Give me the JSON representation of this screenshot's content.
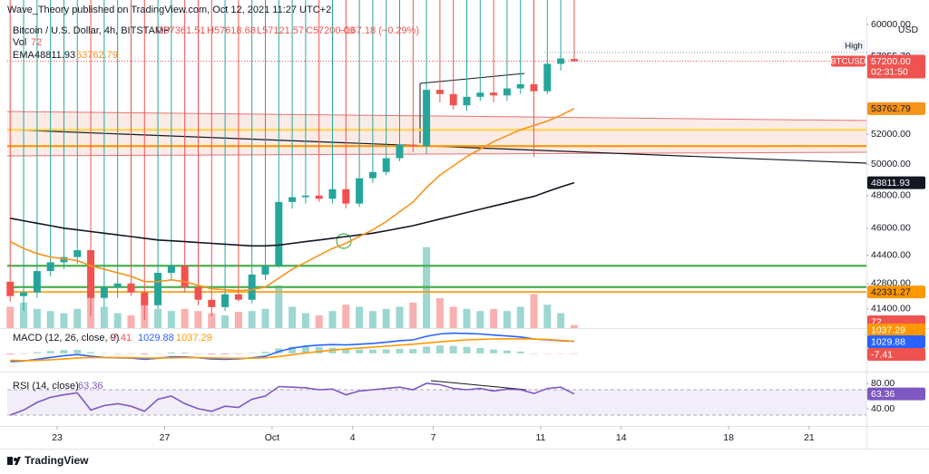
{
  "header": {
    "publisher": "Wave_Theory published on TradingView.com, Oct 12, 2021 11:27 UTC+2",
    "logo": "TradingView"
  },
  "chart_data": [
    {
      "type": "candlestick",
      "title": "Bitcoin / U.S. Dollar, 4h, BITSTAMP",
      "ohlc_labels": [
        "O57361.51",
        "H57618.68",
        "L57121.57",
        "C57200.00"
      ],
      "change": "−167.18 (−0.29%)",
      "x": [
        21.25,
        21.75,
        22.25,
        22.75,
        23.25,
        23.75,
        24.25,
        24.75,
        25.25,
        25.75,
        26.25,
        26.75,
        27.25,
        27.75,
        28.25,
        28.75,
        29.25,
        29.75,
        30.25,
        30.75,
        31.25,
        31.75,
        32.25,
        32.75,
        33.25,
        33.75,
        34.25,
        34.75,
        35.25,
        35.75,
        36.25,
        36.75,
        37.25,
        37.75,
        38.25,
        38.75,
        39.25,
        39.75,
        40.25,
        40.75,
        41.25,
        41.75,
        42.25
      ],
      "open": [
        42900,
        42100,
        42300,
        43500,
        44000,
        44300,
        44700,
        42000,
        42600,
        42800,
        42300,
        41600,
        43400,
        43800,
        42600,
        41900,
        41500,
        42200,
        41900,
        43300,
        43800,
        47600,
        47900,
        48000,
        47800,
        48400,
        47500,
        49100,
        49500,
        50400,
        51300,
        51200,
        55100,
        54800,
        54000,
        54600,
        54900,
        54700,
        55200,
        55500,
        55000,
        57000,
        57361.51
      ],
      "high": 57855.79,
      "low": [
        41800,
        41300,
        42000,
        43200,
        43600,
        43900,
        41000,
        41500,
        42000,
        42100,
        40800,
        41400,
        43000,
        42300,
        41600,
        41000,
        41300,
        41800,
        41700,
        43000,
        43700,
        47200,
        47500,
        47600,
        47500,
        47200,
        47300,
        48800,
        49300,
        50200,
        50800,
        50700,
        54200,
        53700,
        53600,
        54300,
        54200,
        54300,
        54800,
        50500,
        54800,
        56500,
        57121.57
      ],
      "close": [
        42100,
        42300,
        43500,
        44000,
        44300,
        44700,
        42000,
        42600,
        42800,
        42300,
        41600,
        43400,
        43800,
        42600,
        41900,
        41500,
        42200,
        41900,
        43300,
        43800,
        47600,
        47900,
        48000,
        47800,
        48400,
        47500,
        49100,
        49500,
        50400,
        51300,
        51200,
        55100,
        54800,
        54000,
        54600,
        54900,
        54700,
        55200,
        55500,
        55000,
        57000,
        57400,
        57200.0
      ],
      "up_color": "#26a69a",
      "down_color": "#ef5350",
      "indicator_label": "EMA",
      "series": [
        {
          "color": "#131722",
          "values": [
            46600,
            46450,
            46300,
            46150,
            46000,
            45900,
            45800,
            45700,
            45600,
            45500,
            45400,
            45300,
            45250,
            45200,
            45150,
            45100,
            45050,
            45000,
            44950,
            44950,
            45000,
            45100,
            45200,
            45300,
            45400,
            45500,
            45600,
            45700,
            45850,
            46000,
            46150,
            46350,
            46550,
            46750,
            46950,
            47150,
            47350,
            47550,
            47750,
            47950,
            48250,
            48550,
            48811.93
          ]
        },
        {
          "color": "#f7931a",
          "values": [
            45200,
            44800,
            44500,
            44300,
            44200,
            44100,
            43800,
            43600,
            43400,
            43200,
            42900,
            42900,
            43000,
            42900,
            42700,
            42500,
            42450,
            42400,
            42450,
            42600,
            43100,
            43600,
            44000,
            44400,
            44800,
            45100,
            45500,
            45900,
            46400,
            47000,
            47600,
            48500,
            49300,
            49900,
            50500,
            51000,
            51500,
            51900,
            52300,
            52600,
            52900,
            53300,
            53762.79
          ]
        }
      ],
      "last_label": "57200.00",
      "symbol_tag": "BTCUSD",
      "countdown": "02:31:50",
      "high_tag": "High",
      "currency": "USD",
      "levels": [
        {
          "value": 43800,
          "color": "#4caf50"
        },
        {
          "value": 42600,
          "color": "#4caf50"
        },
        {
          "value": 52300,
          "color": "#ffd54f"
        },
        {
          "value": 51200,
          "color": "#ff9800"
        }
      ],
      "level": 42331.27,
      "level_color": "#ff9800",
      "log": true,
      "grid": false,
      "ylim": [
        40380,
        60360
      ],
      "yticks": [
        {
          "value": 60000,
          "label": "60000.00"
        },
        {
          "value": 52000,
          "label": "52000.00"
        },
        {
          "value": 50000,
          "label": "50000.00"
        },
        {
          "value": 48000,
          "label": "48000.00"
        },
        {
          "value": 46000,
          "label": "46000.00"
        },
        {
          "value": 44400,
          "label": "44400.00"
        },
        {
          "value": 42800,
          "label": "42800.00"
        },
        {
          "value": 41400,
          "label": "41400.00"
        }
      ],
      "xlim": [
        21.14,
        53.13
      ],
      "xticks": [
        23,
        27,
        {
          "value": 31,
          "label": "Oct"
        },
        {
          "value": 34,
          "label": "4"
        },
        {
          "value": 37,
          "label": "7"
        },
        {
          "value": 41,
          "label": "11"
        },
        {
          "value": 44,
          "label": "14"
        },
        {
          "value": 48,
          "label": "18"
        },
        {
          "value": 51,
          "label": "21"
        }
      ]
    },
    {
      "type": "bar",
      "title": "Vol",
      "values": [
        500,
        600,
        450,
        400,
        350,
        450,
        900,
        500,
        350,
        300,
        550,
        450,
        400,
        450,
        400,
        350,
        300,
        380,
        400,
        450,
        1000,
        500,
        350,
        300,
        400,
        550,
        500,
        400,
        450,
        500,
        600,
        1900,
        700,
        500,
        450,
        400,
        450,
        400,
        500,
        800,
        550,
        350,
        72
      ],
      "up_color": "#26a69a",
      "down_color": "#ef5350",
      "ylim": [
        0,
        2000
      ]
    },
    {
      "type": "line",
      "title": "MACD (12, 26, close, 9)",
      "histogram": [
        -100,
        -30,
        100,
        200,
        280,
        300,
        110,
        10,
        -15,
        -30,
        -105,
        -20,
        80,
        65,
        -10,
        -90,
        -90,
        -50,
        30,
        130,
        420,
        570,
        590,
        540,
        470,
        350,
        330,
        320,
        340,
        380,
        370,
        580,
        670,
        640,
        550,
        450,
        330,
        240,
        160,
        0,
        -30,
        -20,
        -7.41
      ],
      "histogram_colors": [
        "#26a69a",
        "#ef5350"
      ],
      "series": [
        {
          "color": "#2962ff",
          "values": [
            -700,
            -650,
            -500,
            -350,
            -200,
            -100,
            -250,
            -350,
            -380,
            -400,
            -500,
            -420,
            -300,
            -300,
            -380,
            -480,
            -500,
            -470,
            -380,
            -250,
            150,
            450,
            620,
            700,
            750,
            720,
            780,
            850,
            950,
            1080,
            1150,
            1450,
            1650,
            1720,
            1700,
            1650,
            1560,
            1480,
            1400,
            1220,
            1150,
            1080,
            1029.88
          ]
        },
        {
          "color": "#ff9800",
          "values": [
            -600,
            -620,
            -600,
            -550,
            -480,
            -400,
            -360,
            -360,
            -365,
            -370,
            -395,
            -400,
            -380,
            -365,
            -370,
            -390,
            -410,
            -420,
            -410,
            -380,
            -270,
            -120,
            30,
            160,
            280,
            370,
            450,
            530,
            610,
            700,
            780,
            870,
            980,
            1080,
            1150,
            1200,
            1230,
            1240,
            1240,
            1220,
            1180,
            1100,
            1037.29
          ]
        }
      ],
      "ylim": [
        -1400,
        2000
      ]
    },
    {
      "type": "line",
      "title": "RSI (14, close)",
      "series": [
        {
          "color": "#7e57c2",
          "values": [
            30,
            38,
            50,
            58,
            62,
            65,
            38,
            45,
            48,
            44,
            36,
            55,
            60,
            48,
            40,
            36,
            44,
            42,
            55,
            60,
            75,
            74,
            73,
            70,
            71,
            62,
            68,
            70,
            72,
            74,
            70,
            80,
            78,
            72,
            70,
            72,
            68,
            71,
            70,
            64,
            72,
            74,
            63.36
          ]
        }
      ],
      "band": [
        70,
        30
      ],
      "band_color": "#7e57c2",
      "ylim": [
        12.9,
        92.9
      ],
      "yticks": [
        {
          "value": 80,
          "label": "80.00"
        },
        {
          "value": 40,
          "label": "40.00"
        }
      ]
    }
  ]
}
